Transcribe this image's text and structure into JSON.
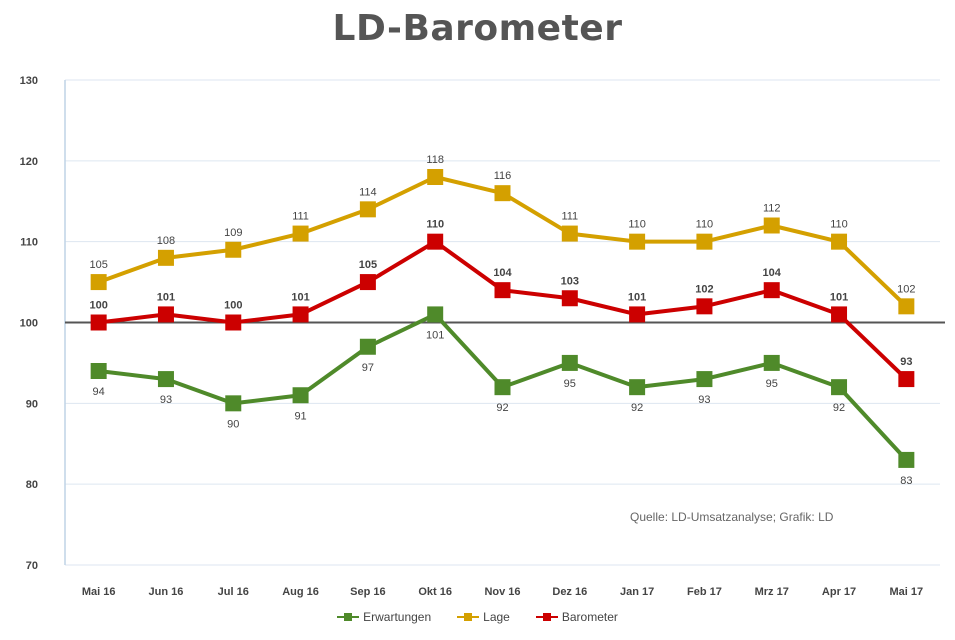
{
  "chart_data": {
    "type": "line",
    "title": "LD-Barometer",
    "source_note": "Quelle: LD-Umsatzanalyse; Grafik: LD",
    "categories": [
      "Mai 16",
      "Jun 16",
      "Jul 16",
      "Aug 16",
      "Sep 16",
      "Okt 16",
      "Nov 16",
      "Dez 16",
      "Jan 17",
      "Feb 17",
      "Mrz 17",
      "Apr 17",
      "Mai 17"
    ],
    "ylim": [
      70,
      130
    ],
    "yticks": [
      70,
      80,
      90,
      100,
      110,
      120,
      130
    ],
    "reference_line": 100,
    "grid": true,
    "legend_position": "bottom",
    "series": [
      {
        "name": "Erwartungen",
        "color": "#4f8a2a",
        "values": [
          94,
          93,
          90,
          91,
          97,
          101,
          92,
          95,
          92,
          93,
          95,
          92,
          83
        ]
      },
      {
        "name": "Lage",
        "color": "#d4a000",
        "values": [
          105,
          108,
          109,
          111,
          114,
          118,
          116,
          111,
          110,
          110,
          112,
          110,
          102
        ]
      },
      {
        "name": "Barometer",
        "color": "#cc0000",
        "values": [
          100,
          101,
          100,
          101,
          105,
          110,
          104,
          103,
          101,
          102,
          104,
          101,
          93
        ]
      }
    ]
  }
}
